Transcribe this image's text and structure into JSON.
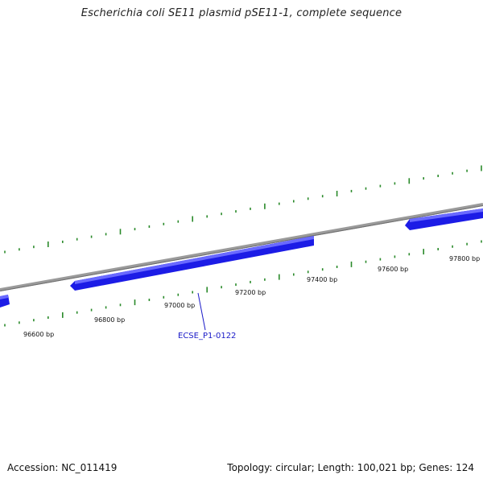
{
  "title": "Escherichia coli SE11 plasmid pSE11-1, complete sequence",
  "footer": {
    "accession": "Accession: NC_011419",
    "summary": "Topology: circular; Length: 100,021 bp; Genes: 124"
  },
  "ruler": {
    "labels": [
      "96600 bp",
      "96800 bp",
      "97000 bp",
      "97200 bp",
      "97400 bp",
      "97600 bp",
      "97800 bp"
    ]
  },
  "genes": [
    {
      "label": "ECSE_P1-0122",
      "strand": "reverse"
    }
  ],
  "colors": {
    "backbone": "#888888",
    "gene": "#1c1ce6",
    "gene_label": "#1a1ac8",
    "tick": "#2a8a2a"
  }
}
